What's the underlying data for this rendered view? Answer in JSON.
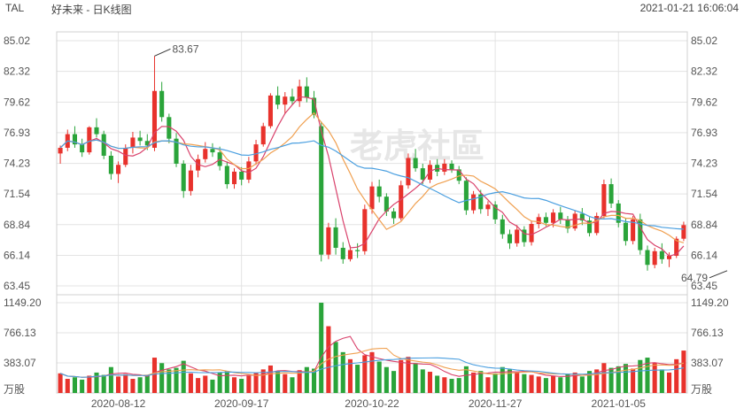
{
  "header": {
    "symbol": "TAL",
    "title": "好未来 - 日K线图",
    "datetime": "2021-01-21 16:06:04"
  },
  "watermark": "老虎社區",
  "colors": {
    "up": "#e8322c",
    "down": "#2aa43a",
    "ma5": "#d9416b",
    "ma10": "#f0a050",
    "ma20": "#4a9fe0",
    "grid": "#e3e3e3"
  },
  "chart_data": {
    "type": "candlestick",
    "price_axis": {
      "ticks": [
        "85.02",
        "82.32",
        "79.62",
        "76.93",
        "74.23",
        "71.54",
        "68.84",
        "66.14",
        "63.45"
      ],
      "ylim": [
        63.45,
        85.02
      ]
    },
    "volume_axis": {
      "ticks": [
        "1149.20",
        "766.13",
        "383.07"
      ],
      "unit": "万股",
      "ylim": [
        0,
        1149.2
      ]
    },
    "x_ticks": [
      "2020-08-12",
      "2020-09-17",
      "2020-10-22",
      "2020-11-27",
      "2021-01-05"
    ],
    "annotations": [
      {
        "label": "83.67",
        "index": 13,
        "value": 83.67
      },
      {
        "label": "64.79",
        "index": 92,
        "value": 64.79
      }
    ],
    "candles": [
      [
        75.1,
        75.8,
        74.2,
        75.6,
        250
      ],
      [
        75.6,
        77.2,
        75.3,
        76.8,
        180
      ],
      [
        76.8,
        77.5,
        75.6,
        75.9,
        200
      ],
      [
        75.9,
        76.4,
        74.8,
        75.2,
        170
      ],
      [
        75.2,
        77.5,
        75.0,
        77.4,
        220
      ],
      [
        77.4,
        78.2,
        76.5,
        76.8,
        260
      ],
      [
        76.8,
        77.1,
        74.6,
        74.9,
        230
      ],
      [
        74.9,
        75.3,
        72.8,
        73.3,
        330
      ],
      [
        73.3,
        74.4,
        72.5,
        74.1,
        210
      ],
      [
        74.1,
        75.9,
        73.9,
        75.6,
        240
      ],
      [
        75.6,
        77.0,
        75.1,
        76.5,
        180
      ],
      [
        76.5,
        77.1,
        75.8,
        76.2,
        200
      ],
      [
        76.2,
        76.8,
        75.4,
        75.8,
        230
      ],
      [
        75.6,
        83.67,
        75.3,
        80.6,
        450
      ],
      [
        80.6,
        81.4,
        77.9,
        78.3,
        380
      ],
      [
        78.3,
        78.6,
        76.0,
        76.4,
        300
      ],
      [
        76.4,
        76.9,
        73.9,
        74.2,
        320
      ],
      [
        74.2,
        74.5,
        71.2,
        71.8,
        410
      ],
      [
        71.8,
        74.1,
        71.4,
        73.6,
        250
      ],
      [
        73.6,
        75.0,
        73.0,
        74.6,
        190
      ],
      [
        74.6,
        76.1,
        74.3,
        75.5,
        220
      ],
      [
        75.5,
        76.0,
        74.8,
        75.2,
        170
      ],
      [
        75.2,
        75.7,
        73.6,
        74.0,
        260
      ],
      [
        74.0,
        74.4,
        72.0,
        72.4,
        280
      ],
      [
        72.4,
        73.8,
        72.0,
        73.5,
        200
      ],
      [
        73.5,
        73.9,
        72.3,
        72.8,
        180
      ],
      [
        72.8,
        74.8,
        72.5,
        74.4,
        220
      ],
      [
        74.4,
        76.3,
        74.1,
        75.9,
        260
      ],
      [
        75.9,
        77.8,
        75.7,
        77.5,
        300
      ],
      [
        77.5,
        80.4,
        77.3,
        80.2,
        350
      ],
      [
        80.2,
        81.0,
        79.0,
        79.4,
        280
      ],
      [
        79.4,
        80.5,
        78.6,
        80.1,
        240
      ],
      [
        80.1,
        80.8,
        79.4,
        79.7,
        200
      ],
      [
        79.7,
        81.6,
        79.2,
        81.0,
        290
      ],
      [
        81.0,
        81.8,
        79.6,
        80.0,
        330
      ],
      [
        80.0,
        80.6,
        78.2,
        78.5,
        310
      ],
      [
        77.5,
        77.9,
        65.6,
        66.2,
        1149
      ],
      [
        66.2,
        69.0,
        65.8,
        68.6,
        850
      ],
      [
        68.6,
        69.4,
        66.2,
        66.8,
        650
      ],
      [
        66.8,
        67.3,
        65.4,
        65.8,
        520
      ],
      [
        65.8,
        67.0,
        65.6,
        66.6,
        430
      ],
      [
        66.6,
        67.2,
        65.9,
        66.5,
        360
      ],
      [
        66.5,
        70.6,
        66.2,
        70.2,
        480
      ],
      [
        70.2,
        72.6,
        69.8,
        72.2,
        520
      ],
      [
        72.2,
        72.8,
        70.8,
        71.3,
        400
      ],
      [
        71.3,
        71.6,
        69.6,
        70.0,
        330
      ],
      [
        70.0,
        70.3,
        68.9,
        69.4,
        280
      ],
      [
        69.4,
        72.7,
        69.2,
        72.3,
        420
      ],
      [
        72.3,
        75.1,
        72.0,
        74.7,
        460
      ],
      [
        74.7,
        75.5,
        73.5,
        73.8,
        380
      ],
      [
        73.8,
        74.2,
        72.4,
        72.8,
        300
      ],
      [
        72.8,
        74.5,
        72.5,
        74.1,
        270
      ],
      [
        74.1,
        74.6,
        73.1,
        73.5,
        220
      ],
      [
        73.5,
        74.6,
        73.2,
        74.2,
        200
      ],
      [
        74.2,
        74.5,
        73.4,
        73.7,
        180
      ],
      [
        73.7,
        74.0,
        72.4,
        72.7,
        190
      ],
      [
        72.7,
        73.0,
        69.7,
        70.1,
        340
      ],
      [
        70.1,
        71.8,
        69.8,
        71.5,
        260
      ],
      [
        71.5,
        71.9,
        69.8,
        70.2,
        280
      ],
      [
        70.2,
        70.9,
        69.6,
        70.6,
        200
      ],
      [
        70.6,
        70.9,
        68.9,
        69.3,
        250
      ],
      [
        69.3,
        69.7,
        67.6,
        68.0,
        330
      ],
      [
        68.0,
        68.4,
        66.7,
        67.2,
        300
      ],
      [
        67.2,
        68.8,
        66.9,
        68.4,
        260
      ],
      [
        68.4,
        68.7,
        66.9,
        67.3,
        240
      ],
      [
        67.3,
        69.2,
        67.0,
        68.9,
        230
      ],
      [
        68.9,
        69.8,
        68.5,
        69.5,
        210
      ],
      [
        69.5,
        69.9,
        68.7,
        69.0,
        190
      ],
      [
        69.0,
        70.2,
        68.6,
        69.9,
        220
      ],
      [
        69.9,
        70.4,
        68.9,
        69.3,
        200
      ],
      [
        69.3,
        69.6,
        68.1,
        68.5,
        240
      ],
      [
        68.5,
        70.1,
        68.3,
        69.8,
        260
      ],
      [
        69.8,
        70.3,
        68.8,
        69.2,
        210
      ],
      [
        69.2,
        69.5,
        67.8,
        68.1,
        280
      ],
      [
        68.1,
        69.9,
        67.9,
        69.6,
        300
      ],
      [
        69.6,
        72.8,
        69.4,
        72.4,
        380
      ],
      [
        72.4,
        72.9,
        70.3,
        70.7,
        320
      ],
      [
        70.7,
        71.0,
        68.6,
        69.0,
        340
      ],
      [
        69.0,
        69.4,
        67.0,
        67.4,
        370
      ],
      [
        67.4,
        69.6,
        67.1,
        69.3,
        310
      ],
      [
        69.3,
        69.8,
        66.2,
        66.6,
        420
      ],
      [
        66.6,
        67.0,
        64.79,
        65.3,
        450
      ],
      [
        65.3,
        66.8,
        65.0,
        66.5,
        380
      ],
      [
        66.5,
        67.2,
        65.4,
        65.8,
        300
      ],
      [
        65.8,
        66.4,
        65.1,
        66.1,
        260
      ],
      [
        66.1,
        67.8,
        65.9,
        67.6,
        430
      ],
      [
        67.6,
        69.1,
        67.4,
        68.8,
        540
      ]
    ]
  }
}
